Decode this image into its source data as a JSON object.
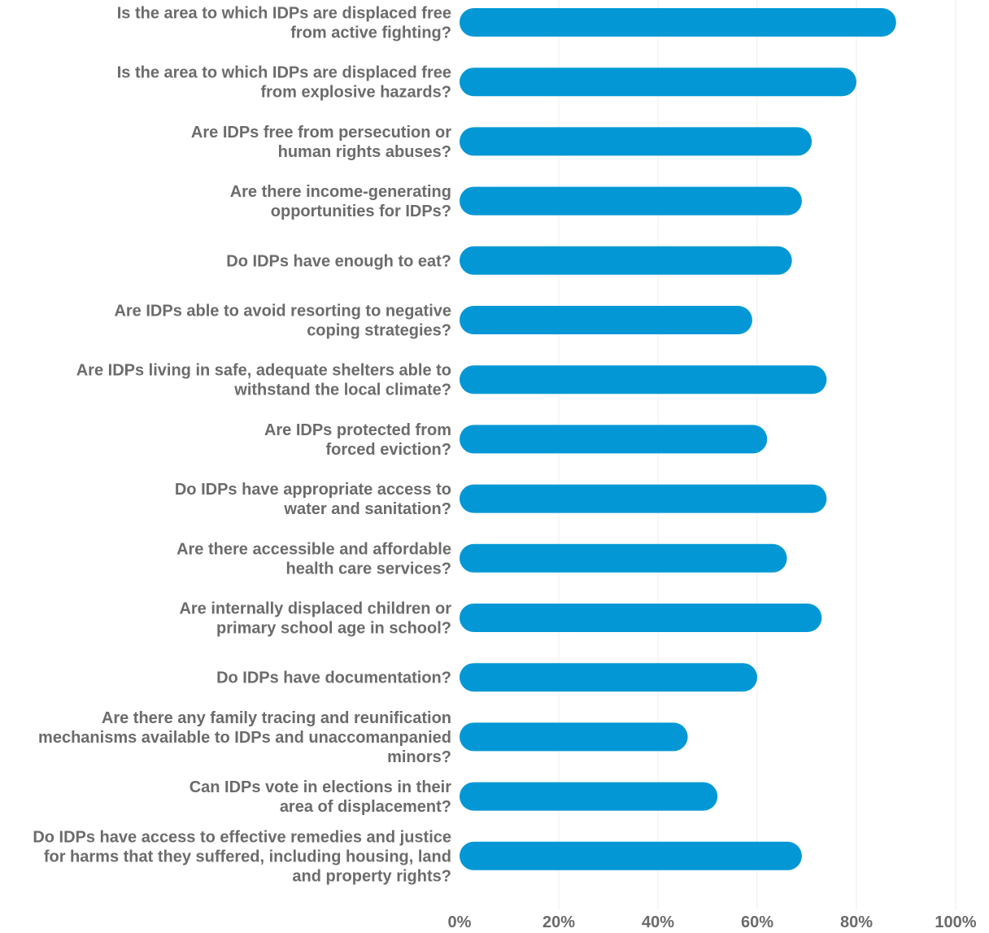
{
  "chart_data": {
    "type": "bar",
    "orientation": "horizontal",
    "categories": [
      [
        "Is the area to which IDPs are displaced free",
        "from active fighting?"
      ],
      [
        "Is the area to which IDPs are displaced free",
        "from explosive hazards?"
      ],
      [
        "Are IDPs free from persecution or",
        "human rights abuses?"
      ],
      [
        "Are there income-generating",
        "opportunities for IDPs?"
      ],
      [
        "Do IDPs have enough to eat?"
      ],
      [
        "Are IDPs able to avoid resorting to negative",
        "coping strategies?"
      ],
      [
        "Are IDPs living in safe, adequate shelters able to",
        "withstand the local climate?"
      ],
      [
        "Are IDPs protected from",
        "forced eviction?"
      ],
      [
        "Do IDPs have appropriate access to",
        "water and sanitation?"
      ],
      [
        "Are there accessible and affordable",
        "health care services?"
      ],
      [
        "Are internally displaced children or",
        "primary school age in school?"
      ],
      [
        "Do IDPs have documentation?"
      ],
      [
        "Are there any family tracing and reunification",
        "mechanisms available to IDPs and unaccomanpanied",
        "minors?"
      ],
      [
        "Can IDPs vote in elections in their",
        "area of displacement?"
      ],
      [
        "Do IDPs have access to effective remedies and justice",
        "for harms that they suffered, including housing, land",
        "and property rights?"
      ]
    ],
    "values": [
      88,
      80,
      71,
      69,
      67,
      59,
      74,
      62,
      74,
      66,
      73,
      60,
      46,
      52,
      69
    ],
    "xlim": [
      0,
      100
    ],
    "xticks": [
      "0%",
      "20%",
      "40%",
      "60%",
      "80%",
      "100%"
    ],
    "grid": true,
    "bar_color": "#0398d5",
    "text_color": "#6b6b6b",
    "grid_color": "#eeeeee"
  }
}
